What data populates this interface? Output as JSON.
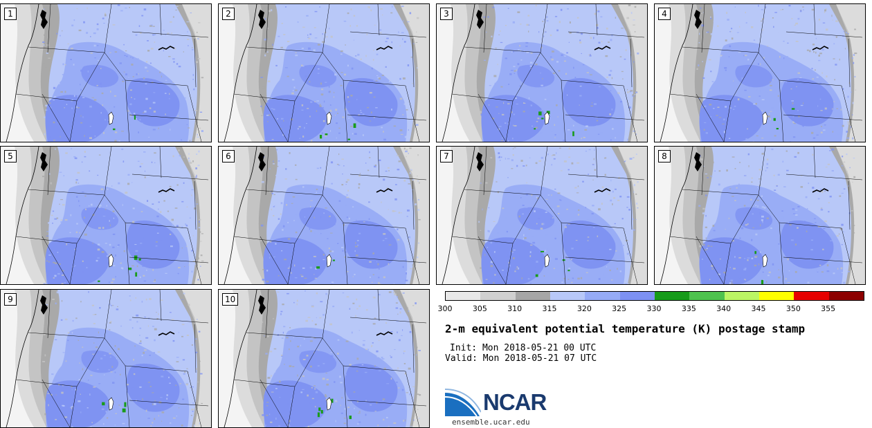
{
  "panels": [
    {
      "label": "1"
    },
    {
      "label": "2"
    },
    {
      "label": "3"
    },
    {
      "label": "4"
    },
    {
      "label": "5"
    },
    {
      "label": "6"
    },
    {
      "label": "7"
    },
    {
      "label": "8"
    },
    {
      "label": "9"
    },
    {
      "label": "10"
    }
  ],
  "colorbar": {
    "ticks": [
      "300",
      "305",
      "310",
      "315",
      "320",
      "325",
      "330",
      "335",
      "340",
      "345",
      "350",
      "355"
    ],
    "colors": [
      "#e8e8e8",
      "#d0d0d0",
      "#a6a6a6",
      "#b8c8f8",
      "#96abf6",
      "#7d91f2",
      "#169b1a",
      "#4ec24e",
      "#bbf564",
      "#ffff00",
      "#e60000",
      "#8c0000"
    ]
  },
  "title": "2-m equivalent potential temperature (K) postage stamp",
  "init": "Init: Mon 2018-05-21 00 UTC",
  "valid": "Valid: Mon 2018-05-21 07 UTC",
  "logo": {
    "name": "NCAR",
    "url": "ensemble.ucar.edu"
  },
  "map_colors": {
    "pale": "#f4f4f4",
    "light_gray": "#dcdcdc",
    "mid_gray": "#c4c4c4",
    "dark_gray": "#a9a9a9",
    "light_blue": "#b8c8f8",
    "mid_blue": "#99adf6",
    "deep_blue": "#7f93f2",
    "green": "#1a9b1a"
  }
}
